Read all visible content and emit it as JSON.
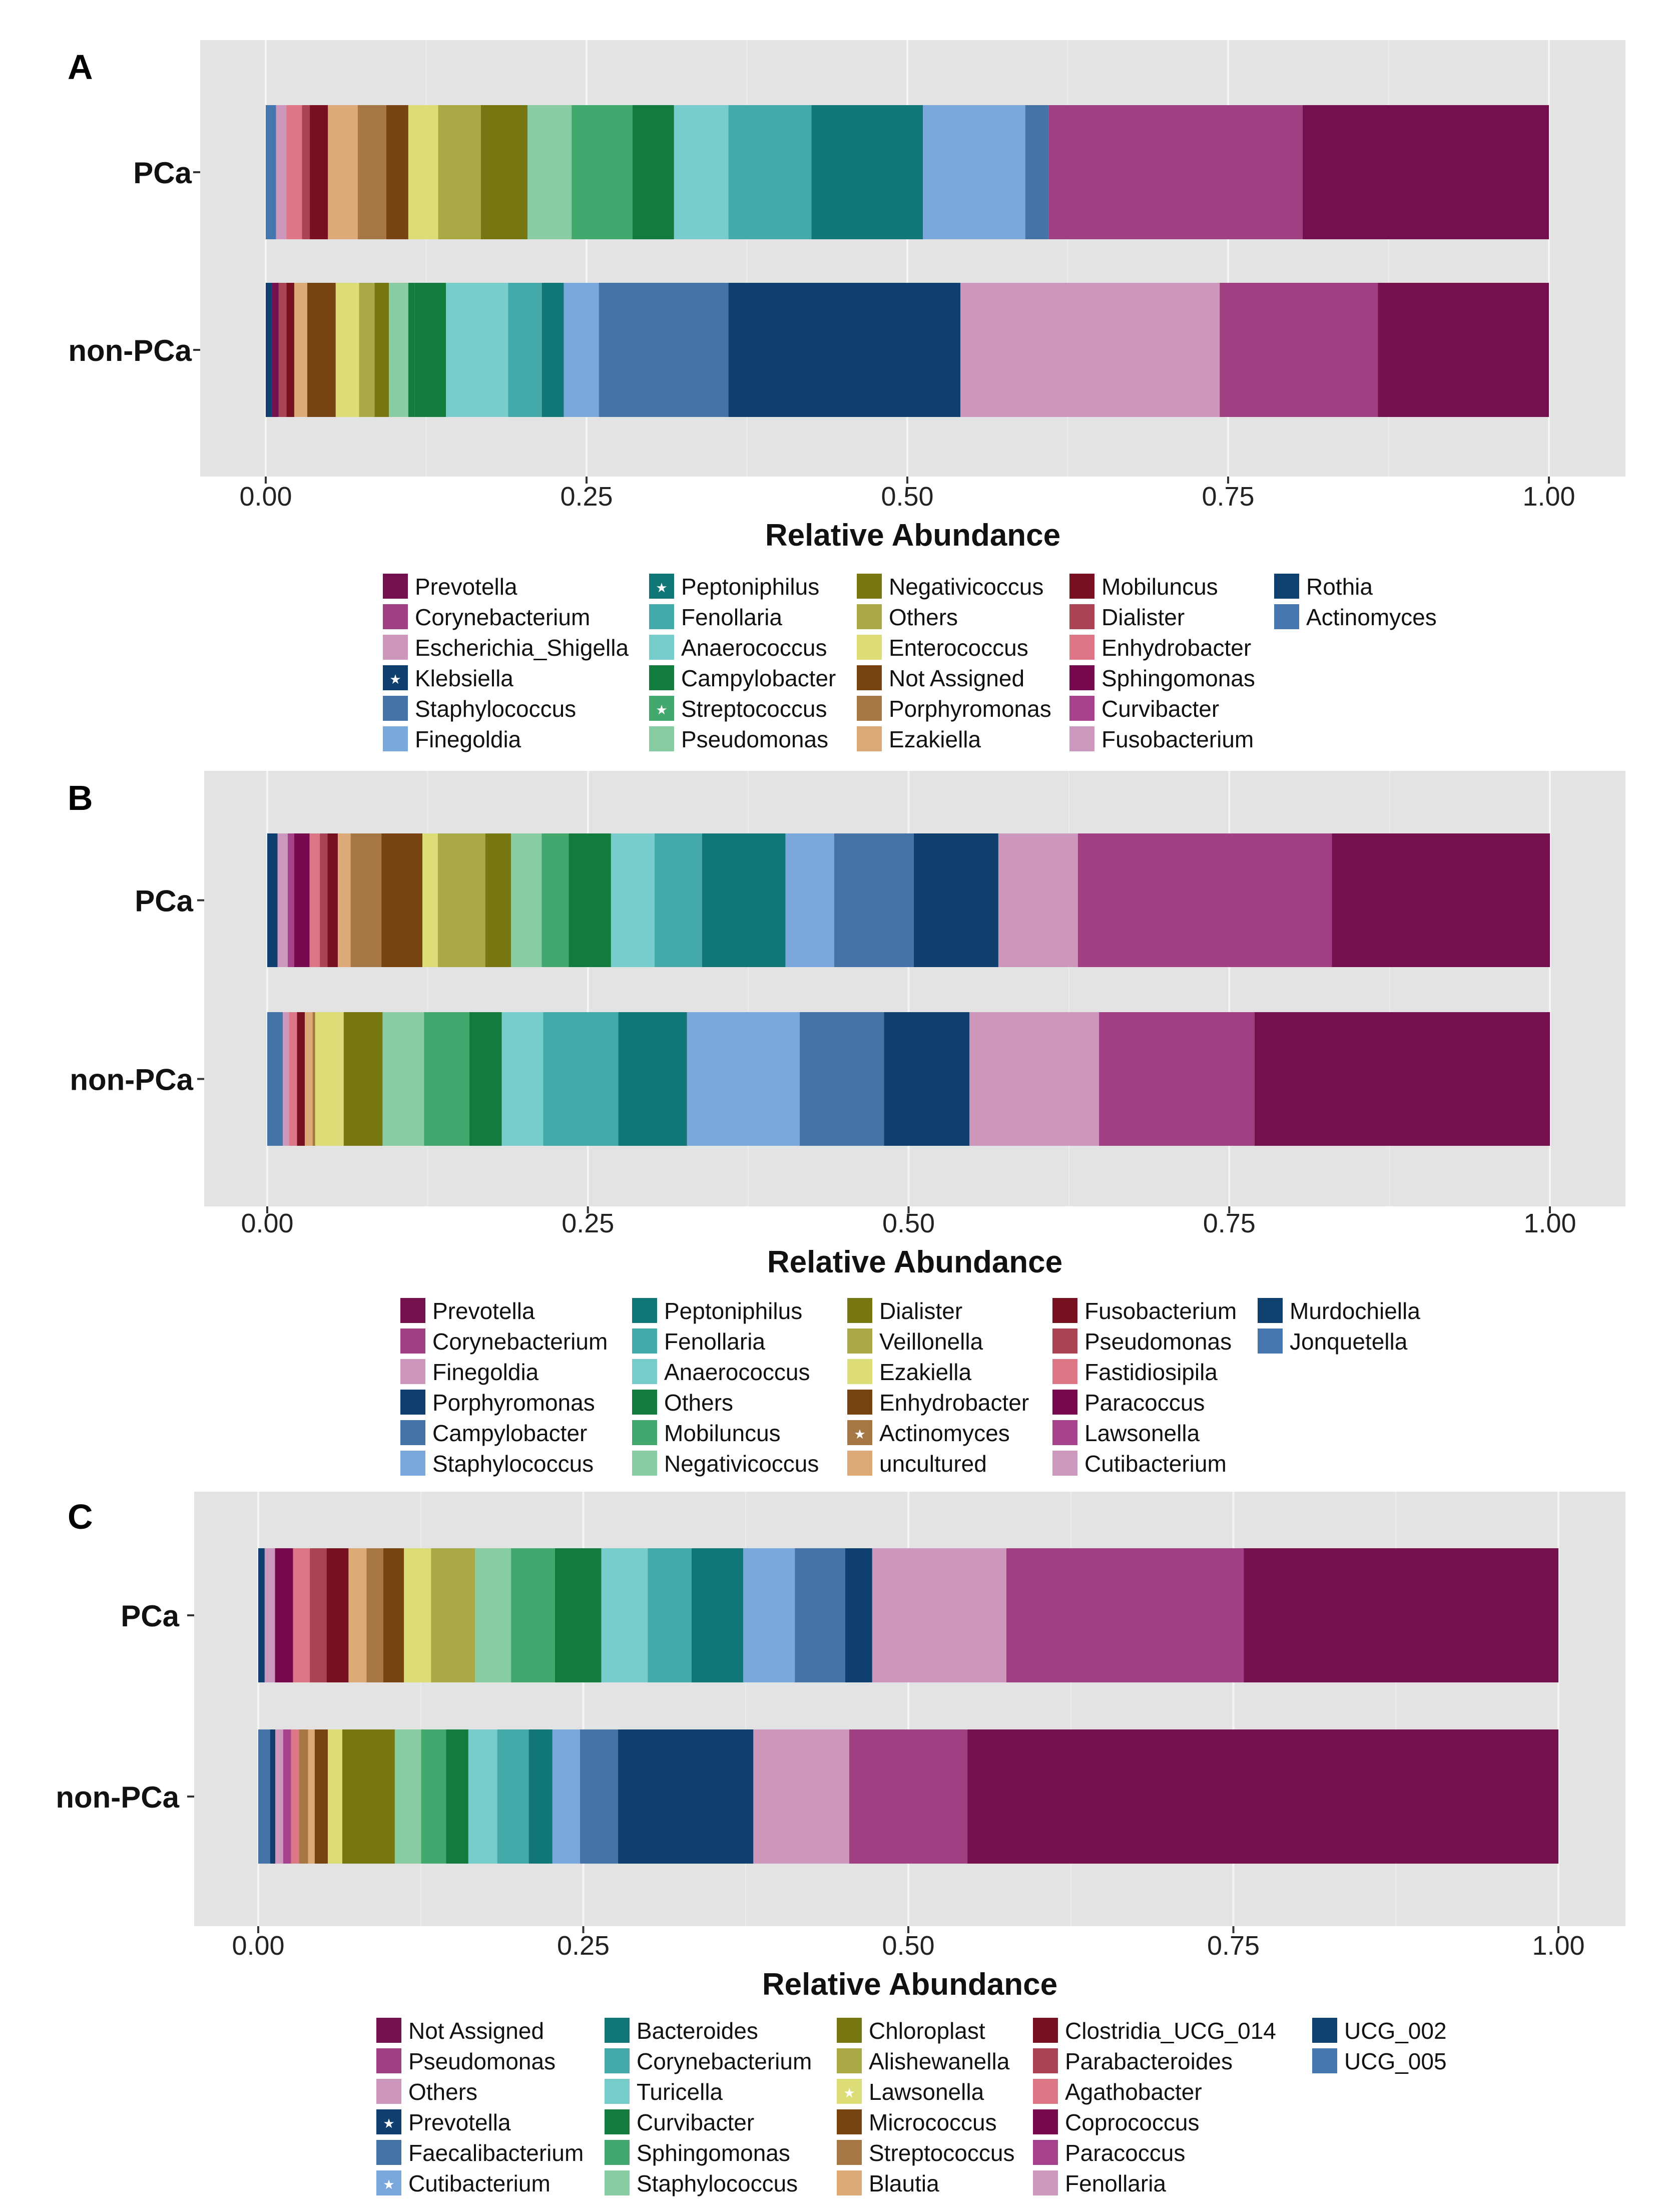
{
  "palette": {
    "Prevotella": "#74104d",
    "Corynebacterium": "#a13f83",
    "Escherichia_Shigella": "#cc97bb",
    "Klebsiella": "#0f3f6e",
    "Staphylococcus": "#4573a8",
    "Finegoldia": "#7aa8dd",
    "Peptoniphilus": "#117676",
    "Fenollaria": "#44a9a9",
    "Anaerococcus": "#77cccc",
    "Campylobacter": "#127b3e",
    "Streptococcus": "#41a86e",
    "Pseudomonas": "#88cca3",
    "Negativicoccus": "#767710",
    "Others": "#a9a945",
    "Enterococcus": "#dddd77",
    "Not Assigned": "#774411",
    "Porphyromonas": "#a77645",
    "Ezakiella": "#ddaa77",
    "Mobiluncus": "#771122",
    "Dialister": "#aa4455",
    "Enhydrobacter": "#dd7788",
    "Sphingomonas": "#770a4e",
    "Curvibacter": "#a6418b",
    "Fusobacterium": "#cd98bd",
    "Rothia": "#0e4070",
    "Actinomyces": "#4576ae"
  },
  "chart_data": [
    {
      "panel": "A",
      "type": "bar",
      "orientation": "horizontal",
      "stacked": true,
      "categories": [
        "PCa",
        "non-PCa"
      ],
      "xlabel": "Relative Abundance",
      "xlim": [
        0,
        1
      ],
      "xticks": [
        "0.00",
        "0.25",
        "0.50",
        "0.75",
        "1.00"
      ],
      "segments": [
        {
          "PCa": [
            [
              "#4576ae",
              0.008
            ],
            [
              "#cc97bb",
              0.008
            ],
            [
              "#dd7788",
              0.012
            ],
            [
              "#aa4455",
              0.006
            ],
            [
              "#771122",
              0.014
            ],
            [
              "#ddaa77",
              0.023
            ],
            [
              "#a77645",
              0.022
            ],
            [
              "#774411",
              0.017
            ],
            [
              "#dddd77",
              0.023
            ],
            [
              "#a9a945",
              0.033
            ],
            [
              "#767710",
              0.036
            ],
            [
              "#88cca3",
              0.034
            ],
            [
              "#41a86e",
              0.047
            ],
            [
              "#127b3e",
              0.032
            ],
            [
              "#77cccc",
              0.042
            ],
            [
              "#44a9a9",
              0.064
            ],
            [
              "#117676",
              0.086
            ],
            [
              "#7aa8dd",
              0.079
            ],
            [
              "#4573a8",
              0.018
            ],
            [
              "#a13f83",
              0.196
            ],
            [
              "#74104d",
              0.19
            ]
          ]
        },
        {
          "non-PCa": [
            [
              "#0f3f6e",
              0.005
            ],
            [
              "#74104d",
              0.005
            ],
            [
              "#aa4455",
              0.006
            ],
            [
              "#771122",
              0.006
            ],
            [
              "#ddaa77",
              0.01
            ],
            [
              "#774411",
              0.022
            ],
            [
              "#dddd77",
              0.018
            ],
            [
              "#a9a945",
              0.012
            ],
            [
              "#767710",
              0.011
            ],
            [
              "#88cca3",
              0.015
            ],
            [
              "#127b3e",
              0.005
            ],
            [
              "#127b3e",
              0.024
            ],
            [
              "#77cccc",
              0.048
            ],
            [
              "#44a9a9",
              0.026
            ],
            [
              "#117676",
              0.017
            ],
            [
              "#7aa8dd",
              0.027
            ],
            [
              "#4573a8",
              0.1
            ],
            [
              "#0f3f6e",
              0.179
            ],
            [
              "#cc97bb",
              0.2
            ],
            [
              "#a13f83",
              0.122
            ],
            [
              "#74104d",
              0.132
            ]
          ]
        }
      ],
      "legend": {
        "columns": [
          [
            "Prevotella",
            "Corynebacterium",
            "Escherichia_Shigella",
            "Klebsiella",
            "Staphylococcus",
            "Finegoldia"
          ],
          [
            "Peptoniphilus",
            "Fenollaria",
            "Anaerococcus",
            "Campylobacter",
            "Streptococcus",
            "Pseudomonas"
          ],
          [
            "Negativicoccus",
            "Others",
            "Enterococcus",
            "Not Assigned",
            "Porphyromonas",
            "Ezakiella"
          ],
          [
            "Mobiluncus",
            "Dialister",
            "Enhydrobacter",
            "Sphingomonas",
            "Curvibacter",
            "Fusobacterium"
          ],
          [
            "Rothia",
            "Actinomyces"
          ]
        ],
        "colors": [
          [
            "#74104d",
            "#a13f83",
            "#cc97bb",
            "#0f3f6e",
            "#4573a8",
            "#7aa8dd"
          ],
          [
            "#117676",
            "#44a9a9",
            "#77cccc",
            "#127b3e",
            "#41a86e",
            "#88cca3"
          ],
          [
            "#767710",
            "#a9a945",
            "#dddd77",
            "#774411",
            "#a77645",
            "#ddaa77"
          ],
          [
            "#771122",
            "#aa4455",
            "#dd7788",
            "#770a4e",
            "#a6418b",
            "#cd98bd"
          ],
          [
            "#0e4070",
            "#4576ae"
          ]
        ],
        "starred": [
          "Klebsiella",
          "Peptoniphilus",
          "Streptococcus"
        ]
      }
    },
    {
      "panel": "B",
      "type": "bar",
      "orientation": "horizontal",
      "stacked": true,
      "categories": [
        "PCa",
        "non-PCa"
      ],
      "xlabel": "Relative Abundance",
      "xlim": [
        0,
        1
      ],
      "xticks": [
        "0.00",
        "0.25",
        "0.50",
        "0.75",
        "1.00"
      ],
      "segments": [
        {
          "PCa": [
            [
              "#0f3f6e",
              0.008
            ],
            [
              "#cd98bd",
              0.008
            ],
            [
              "#a6418b",
              0.005
            ],
            [
              "#770a4e",
              0.012
            ],
            [
              "#dd7788",
              0.008
            ],
            [
              "#aa4455",
              0.006
            ],
            [
              "#771122",
              0.008
            ],
            [
              "#ddaa77",
              0.01
            ],
            [
              "#a77645",
              0.024
            ],
            [
              "#774411",
              0.032
            ],
            [
              "#dddd77",
              0.012
            ],
            [
              "#a9a945",
              0.037
            ],
            [
              "#767710",
              0.02
            ],
            [
              "#88cca3",
              0.024
            ],
            [
              "#41a86e",
              0.021
            ],
            [
              "#127b3e",
              0.033
            ],
            [
              "#77cccc",
              0.034
            ],
            [
              "#44a9a9",
              0.037
            ],
            [
              "#117676",
              0.065
            ],
            [
              "#7aa8dd",
              0.038
            ],
            [
              "#4573a8",
              0.062
            ],
            [
              "#0f3f6e",
              0.066
            ],
            [
              "#cc97bb",
              0.062
            ],
            [
              "#a13f83",
              0.198
            ],
            [
              "#74104d",
              0.17
            ]
          ]
        },
        {
          "non-PCa": [
            [
              "#4573a8",
              0.012
            ],
            [
              "#cc97bb",
              0.005
            ],
            [
              "#dd7788",
              0.006
            ],
            [
              "#771122",
              0.006
            ],
            [
              "#ddaa77",
              0.006
            ],
            [
              "#a77645",
              0.002
            ],
            [
              "#dddd77",
              0.022
            ],
            [
              "#767710",
              0.03
            ],
            [
              "#88cca3",
              0.032
            ],
            [
              "#41a86e",
              0.035
            ],
            [
              "#127b3e",
              0.025
            ],
            [
              "#77cccc",
              0.032
            ],
            [
              "#44a9a9",
              0.058
            ],
            [
              "#117676",
              0.053
            ],
            [
              "#7aa8dd",
              0.087
            ],
            [
              "#4573a8",
              0.065
            ],
            [
              "#0f3f6e",
              0.066
            ],
            [
              "#cc97bb",
              0.1
            ],
            [
              "#a13f83",
              0.12
            ],
            [
              "#74104d",
              0.228
            ]
          ]
        }
      ],
      "legend": {
        "columns": [
          [
            "Prevotella",
            "Corynebacterium",
            "Finegoldia",
            "Porphyromonas",
            "Campylobacter",
            "Staphylococcus"
          ],
          [
            "Peptoniphilus",
            "Fenollaria",
            "Anaerococcus",
            "Others",
            "Mobiluncus",
            "Negativicoccus"
          ],
          [
            "Dialister",
            "Veillonella",
            "Ezakiella",
            "Enhydrobacter",
            "Actinomyces",
            "uncultured"
          ],
          [
            "Fusobacterium",
            "Pseudomonas",
            "Fastidiosipila",
            "Paracoccus",
            "Lawsonella",
            "Cutibacterium"
          ],
          [
            "Murdochiella",
            "Jonquetella"
          ]
        ],
        "colors": [
          [
            "#74104d",
            "#a13f83",
            "#cc97bb",
            "#0f3f6e",
            "#4573a8",
            "#7aa8dd"
          ],
          [
            "#117676",
            "#44a9a9",
            "#77cccc",
            "#127b3e",
            "#41a86e",
            "#88cca3"
          ],
          [
            "#767710",
            "#a9a945",
            "#dddd77",
            "#774411",
            "#a77645",
            "#ddaa77"
          ],
          [
            "#771122",
            "#aa4455",
            "#dd7788",
            "#770a4e",
            "#a6418b",
            "#cd98bd"
          ],
          [
            "#0e4070",
            "#4576ae"
          ]
        ],
        "starred": [
          "Actinomyces"
        ]
      }
    },
    {
      "panel": "C",
      "type": "bar",
      "orientation": "horizontal",
      "stacked": true,
      "categories": [
        "PCa",
        "non-PCa"
      ],
      "xlabel": "Relative Abundance",
      "xlim": [
        0,
        1
      ],
      "xticks": [
        "0.00",
        "0.25",
        "0.50",
        "0.75",
        "1.00"
      ],
      "segments": [
        {
          "PCa": [
            [
              "#0f3f6e",
              0.005
            ],
            [
              "#cd98bd",
              0.008
            ],
            [
              "#770a4e",
              0.014
            ],
            [
              "#dd7788",
              0.013
            ],
            [
              "#aa4455",
              0.013
            ],
            [
              "#771122",
              0.017
            ],
            [
              "#ddaa77",
              0.014
            ],
            [
              "#a77645",
              0.013
            ],
            [
              "#774411",
              0.016
            ],
            [
              "#dddd77",
              0.021
            ],
            [
              "#a9a945",
              0.034
            ],
            [
              "#88cca3",
              0.028
            ],
            [
              "#41a86e",
              0.034
            ],
            [
              "#127b3e",
              0.036
            ],
            [
              "#77cccc",
              0.036
            ],
            [
              "#44a9a9",
              0.034
            ],
            [
              "#117676",
              0.04
            ],
            [
              "#7aa8dd",
              0.04
            ],
            [
              "#4573a8",
              0.039
            ],
            [
              "#0f3f6e",
              0.021
            ],
            [
              "#cc97bb",
              0.104
            ],
            [
              "#a13f83",
              0.184
            ],
            [
              "#74104d",
              0.244
            ]
          ]
        },
        {
          "non-PCa": [
            [
              "#4573a8",
              0.009
            ],
            [
              "#0f3f6e",
              0.004
            ],
            [
              "#cd98bd",
              0.006
            ],
            [
              "#a6418b",
              0.006
            ],
            [
              "#dd7788",
              0.006
            ],
            [
              "#a77645",
              0.007
            ],
            [
              "#ddaa77",
              0.005
            ],
            [
              "#774411",
              0.01
            ],
            [
              "#dddd77",
              0.011
            ],
            [
              "#767710",
              0.04
            ],
            [
              "#88cca3",
              0.02
            ],
            [
              "#41a86e",
              0.019
            ],
            [
              "#127b3e",
              0.017
            ],
            [
              "#77cccc",
              0.022
            ],
            [
              "#44a9a9",
              0.024
            ],
            [
              "#117676",
              0.018
            ],
            [
              "#7aa8dd",
              0.021
            ],
            [
              "#4573a8",
              0.029
            ],
            [
              "#0f3f6e",
              0.103
            ],
            [
              "#cc97bb",
              0.073
            ],
            [
              "#a13f83",
              0.09
            ],
            [
              "#74104d",
              0.45
            ]
          ]
        }
      ],
      "legend": {
        "columns": [
          [
            "Not Assigned",
            "Pseudomonas",
            "Others",
            "Prevotella",
            "Faecalibacterium",
            "Cutibacterium"
          ],
          [
            "Bacteroides",
            "Corynebacterium",
            "Turicella",
            "Curvibacter",
            "Sphingomonas",
            "Staphylococcus"
          ],
          [
            "Chloroplast",
            "Alishewanella",
            "Lawsonella",
            "Micrococcus",
            "Streptococcus",
            "Blautia"
          ],
          [
            "Clostridia_UCG_014",
            "Parabacteroides",
            "Agathobacter",
            "Coprococcus",
            "Paracoccus",
            "Fenollaria"
          ],
          [
            "UCG_002",
            "UCG_005"
          ]
        ],
        "colors": [
          [
            "#74104d",
            "#a13f83",
            "#cc97bb",
            "#0f3f6e",
            "#4573a8",
            "#7aa8dd"
          ],
          [
            "#117676",
            "#44a9a9",
            "#77cccc",
            "#127b3e",
            "#41a86e",
            "#88cca3"
          ],
          [
            "#767710",
            "#a9a945",
            "#dddd77",
            "#774411",
            "#a77645",
            "#ddaa77"
          ],
          [
            "#771122",
            "#aa4455",
            "#dd7788",
            "#770a4e",
            "#a6418b",
            "#cd98bd"
          ],
          [
            "#0e4070",
            "#4576ae"
          ]
        ],
        "starred": [
          "Prevotella",
          "Cutibacterium",
          "Lawsonella"
        ]
      }
    }
  ]
}
